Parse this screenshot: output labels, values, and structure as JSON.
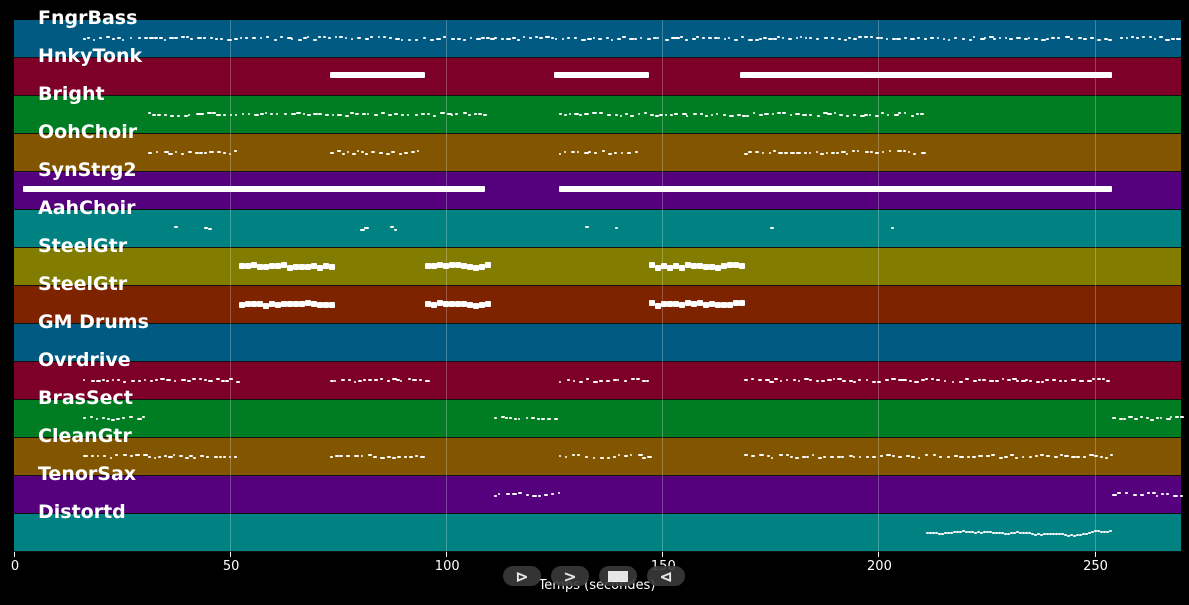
{
  "chart_data": {
    "type": "piano-roll",
    "title": "",
    "xlabel": "Temps (secondes)",
    "ylabel": "",
    "xlim": [
      0,
      270
    ],
    "xticks": [
      0,
      50,
      100,
      150,
      200,
      250
    ],
    "grid": true,
    "tracks": [
      {
        "name": "FngrBass",
        "color": "#005a82",
        "segments": [
          [
            16,
            254
          ],
          [
            256,
            270
          ]
        ],
        "style": "dots"
      },
      {
        "name": "HnkyTonk",
        "color": "#7d0028",
        "segments": [
          [
            73,
            95
          ],
          [
            125,
            147
          ],
          [
            168,
            254
          ]
        ],
        "style": "bar"
      },
      {
        "name": "Bright",
        "color": "#007d23",
        "segments": [
          [
            31,
            109
          ],
          [
            126,
            210
          ]
        ],
        "style": "dots"
      },
      {
        "name": "OohChoir",
        "color": "#825500",
        "segments": [
          [
            31,
            51
          ],
          [
            73,
            94
          ],
          [
            126,
            145
          ],
          [
            169,
            210
          ]
        ],
        "style": "dots"
      },
      {
        "name": "SynStrg2",
        "color": "#55007d",
        "segments": [
          [
            2,
            109
          ],
          [
            126,
            254
          ]
        ],
        "style": "bar"
      },
      {
        "name": "AahChoir",
        "color": "#008282",
        "segments": [
          [
            37,
            38
          ],
          [
            44,
            45
          ],
          [
            80,
            81
          ],
          [
            87,
            88
          ],
          [
            132,
            133
          ],
          [
            139,
            140
          ],
          [
            175,
            176
          ],
          [
            203,
            204
          ]
        ],
        "style": "dots"
      },
      {
        "name": "SteelGtr",
        "color": "#827d00",
        "segments": [
          [
            52,
            73
          ],
          [
            95,
            109
          ],
          [
            147,
            168
          ]
        ],
        "style": "thick"
      },
      {
        "name": "SteelGtr",
        "color": "#7d2300",
        "segments": [
          [
            52,
            73
          ],
          [
            95,
            109
          ],
          [
            147,
            168
          ]
        ],
        "style": "thick"
      },
      {
        "name": "GM Drums",
        "color": "#005a82",
        "segments": [],
        "style": "dots"
      },
      {
        "name": "Ovrdrive",
        "color": "#7d0028",
        "segments": [
          [
            16,
            52
          ],
          [
            73,
            95
          ],
          [
            126,
            147
          ],
          [
            169,
            254
          ]
        ],
        "style": "dots"
      },
      {
        "name": "BrasSect",
        "color": "#007d23",
        "segments": [
          [
            16,
            30
          ],
          [
            111,
            126
          ],
          [
            254,
            270
          ]
        ],
        "style": "dots"
      },
      {
        "name": "CleanGtr",
        "color": "#825500",
        "segments": [
          [
            16,
            52
          ],
          [
            73,
            95
          ],
          [
            126,
            147
          ],
          [
            169,
            254
          ]
        ],
        "style": "dots"
      },
      {
        "name": "TenorSax",
        "color": "#55007d",
        "segments": [
          [
            111,
            126
          ],
          [
            254,
            270
          ]
        ],
        "style": "dots"
      },
      {
        "name": "Distortd",
        "color": "#008282",
        "segments": [
          [
            211,
            254
          ]
        ],
        "style": "line"
      }
    ]
  },
  "axis": {
    "xlabel": "Temps (secondes)",
    "ticks": [
      "0",
      "50",
      "100",
      "150",
      "200",
      "250"
    ]
  },
  "controls": {
    "play": "⊳",
    "next": ">",
    "stop": "▬",
    "prev": "⊲"
  }
}
